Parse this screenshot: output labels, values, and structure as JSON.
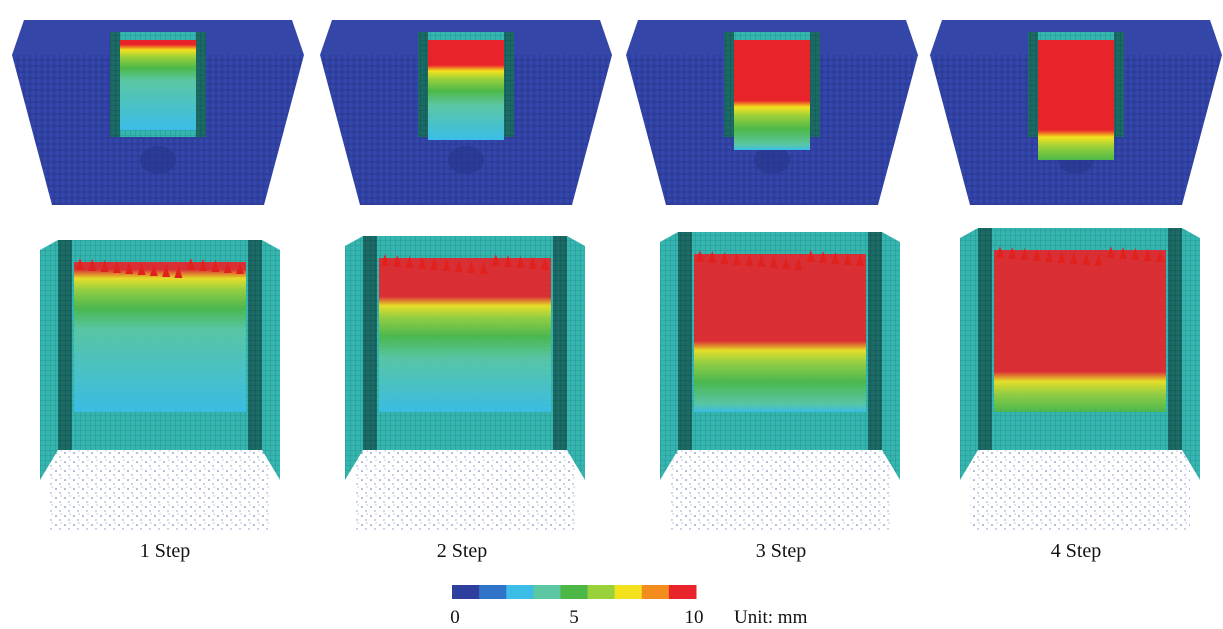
{
  "panels": [
    {
      "step_label": "1 Step",
      "red_fraction": 0.05
    },
    {
      "step_label": "2 Step",
      "red_fraction": 0.25
    },
    {
      "step_label": "3 Step",
      "red_fraction": 0.55
    },
    {
      "step_label": "4 Step",
      "red_fraction": 0.75
    }
  ],
  "legend": {
    "colors": [
      "#2e3f9e",
      "#2f74c8",
      "#3bbde8",
      "#5bc7a3",
      "#4db848",
      "#9ad03a",
      "#f4e21e",
      "#f28c1c",
      "#e8232a"
    ],
    "ticks": [
      "0",
      "5",
      "10"
    ],
    "unit": "Unit: mm"
  },
  "colors": {
    "soil_blue": "#2e3d9a",
    "wall_teal": "#33b4b0",
    "wall_dark": "#17605d",
    "red": "#e0221f"
  }
}
